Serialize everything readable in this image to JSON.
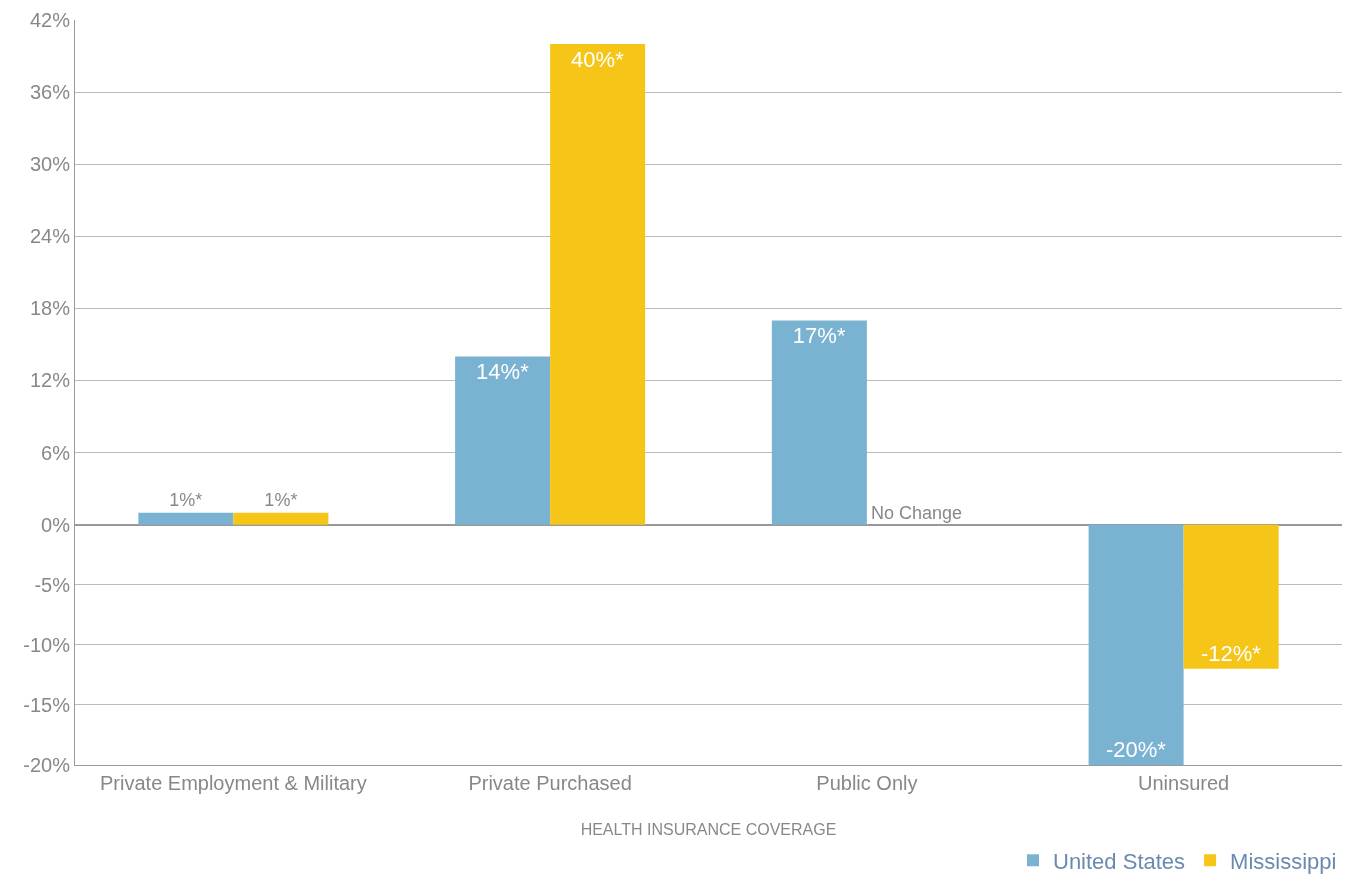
{
  "chart_data": {
    "type": "bar",
    "xlabel": "HEALTH INSURANCE COVERAGE",
    "categories": [
      "Private Employment & Military",
      "Private Purchased",
      "Public Only",
      "Uninsured"
    ],
    "series": [
      {
        "name": "United States",
        "color": "#7ab3d2",
        "values": [
          1,
          14,
          17,
          -20
        ],
        "value_labels": [
          "1%*",
          "14%*",
          "17%*",
          "-20%*"
        ]
      },
      {
        "name": "Mississippi",
        "color": "#f5c518",
        "values": [
          1,
          40,
          0,
          -12
        ],
        "value_labels": [
          "1%*",
          "40%*",
          null,
          "-12%*"
        ]
      }
    ],
    "annotations": [
      {
        "text": "No Change",
        "x": "Public Only",
        "y": 0
      }
    ],
    "ylim": [
      -20,
      42
    ],
    "yticks": [
      {
        "value": -20,
        "label": "-20%"
      },
      {
        "value": -15,
        "label": "-15%"
      },
      {
        "value": -10,
        "label": "-10%"
      },
      {
        "value": -5,
        "label": "-5%"
      },
      {
        "value": 0,
        "label": "0%"
      },
      {
        "value": 6,
        "label": "6%"
      },
      {
        "value": 12,
        "label": "12%"
      },
      {
        "value": 18,
        "label": "18%"
      },
      {
        "value": 24,
        "label": "24%"
      },
      {
        "value": 30,
        "label": "30%"
      },
      {
        "value": 36,
        "label": "36%"
      },
      {
        "value": 42,
        "label": "42%"
      }
    ],
    "grid": "y",
    "legend": "bottom right"
  }
}
